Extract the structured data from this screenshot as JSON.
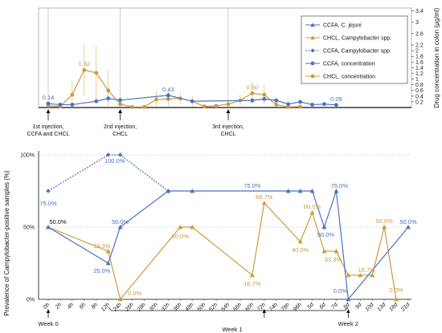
{
  "chart_data": {
    "type": "line",
    "colors": {
      "ccfa": "#4a72c4",
      "chcl": "#cc9a3a",
      "grid": "#bbbbbb"
    },
    "time_labels": [
      "0h",
      "2h",
      "4h",
      "6h",
      "8h",
      "12h",
      "24h",
      "26h",
      "28h",
      "30h",
      "32h",
      "36h",
      "48h",
      "50h",
      "52h",
      "54h",
      "56h",
      "60h",
      "72h",
      "74h",
      "78h",
      "96h",
      "5d",
      "6d",
      "7d",
      "8d",
      "9d",
      "10d",
      "13d",
      "18d",
      "21d"
    ],
    "weeks": [
      {
        "label": "Week 0",
        "time": "0h"
      },
      {
        "label": "Week 1",
        "time": "72h"
      },
      {
        "label": "Week 2",
        "time": "8d"
      }
    ],
    "injections": [
      {
        "time": "0h",
        "lines": [
          "1st injection,",
          "CCFA and CHCL"
        ]
      },
      {
        "time": "24h",
        "lines": [
          "2nd injection,",
          "CHCL"
        ]
      },
      {
        "time": "54h",
        "lines": [
          "3rd injection,",
          "CHCL"
        ]
      }
    ],
    "top_panel": {
      "ylabel": "Drug concentration in colon (μg/ml)",
      "ylim": [
        0,
        3.5
      ],
      "yticks": [
        "0.2",
        "0.4",
        "0.6",
        "0.8",
        "1",
        "1.2",
        "1.4",
        "1.6",
        "1.8",
        "2",
        "2.2",
        "2.6",
        "3",
        "3.4"
      ],
      "ccfa_concentration": {
        "name": "CCFA, concentration",
        "points": [
          [
            "0h",
            0.14
          ],
          [
            "2h",
            0.1
          ],
          [
            "4h",
            0.1
          ],
          [
            "8h",
            0.22
          ],
          [
            "12h",
            0.32
          ],
          [
            "24h",
            0.26
          ],
          [
            "32h",
            0.43
          ],
          [
            "48h",
            0.22
          ],
          [
            "60h",
            0.25
          ],
          [
            "72h",
            0.3
          ],
          [
            "74h",
            0.25
          ],
          [
            "78h",
            0.12
          ],
          [
            "96h",
            0.2
          ],
          [
            "5d",
            0.1
          ],
          [
            "6d",
            0.12
          ],
          [
            "7d",
            0.09
          ]
        ],
        "errors": [
          0.05,
          0.05,
          0.05,
          0.08,
          0.12,
          0.1,
          0.15,
          0.08,
          0.08,
          0.08,
          0.08,
          0.05,
          0.06,
          0.04,
          0.05,
          0.03
        ]
      },
      "chcl_concentration": {
        "name": "CHCL, concentration",
        "points": [
          [
            "0h",
            0.06
          ],
          [
            "2h",
            0.04
          ],
          [
            "4h",
            0.45
          ],
          [
            "6h",
            1.32
          ],
          [
            "8h",
            1.22
          ],
          [
            "12h",
            0.6
          ],
          [
            "24h",
            0.12
          ],
          [
            "26h",
            0.02
          ],
          [
            "28h",
            0.02
          ],
          [
            "30h",
            0.28
          ],
          [
            "32h",
            0.3
          ],
          [
            "36h",
            0.32
          ],
          [
            "48h",
            0.22
          ],
          [
            "50h",
            0.04
          ],
          [
            "52h",
            0.06
          ],
          [
            "54h",
            0.12
          ],
          [
            "56h",
            0.25
          ],
          [
            "60h",
            0.5
          ],
          [
            "72h",
            0.45
          ],
          [
            "74h",
            0.1
          ],
          [
            "78h",
            0.02
          ],
          [
            "96h",
            0.03
          ]
        ],
        "errors": [
          0.04,
          0.03,
          0.5,
          0.9,
          0.95,
          0.7,
          0.2,
          0.05,
          0.05,
          0.3,
          0.25,
          0.2,
          0.2,
          0.04,
          0.05,
          0.15,
          0.2,
          0.4,
          0.35,
          0.1,
          0.04,
          0.04
        ]
      },
      "data_labels": [
        {
          "series": "ccfa",
          "time": "0h",
          "value": 0.14,
          "text": "0.14"
        },
        {
          "series": "chcl",
          "time": "6h",
          "value": 1.32,
          "text": "1.32"
        },
        {
          "series": "ccfa",
          "time": "32h",
          "value": 0.43,
          "text": "0.43"
        },
        {
          "series": "chcl",
          "time": "60h",
          "value": 0.5,
          "text": "0.50"
        },
        {
          "series": "ccfa",
          "time": "7d",
          "value": 0.09,
          "text": "0.09"
        }
      ]
    },
    "bottom_panel": {
      "ylabel": "Prevalence of Campylobacter-positive samples (%)",
      "ylim": [
        0,
        100
      ],
      "yticks": [
        "0%",
        "50%",
        "100%"
      ],
      "ccfa_cjejuni": {
        "name": "CCFA, C. jejuni",
        "points": [
          [
            "0h",
            50
          ],
          [
            "12h",
            25
          ],
          [
            "24h",
            50
          ],
          [
            "32h",
            75
          ],
          [
            "48h",
            75
          ],
          [
            "78h",
            75
          ],
          [
            "96h",
            75
          ],
          [
            "5d",
            75
          ],
          [
            "6d",
            50
          ],
          [
            "7d",
            75
          ],
          [
            "8d",
            0
          ],
          [
            "21d",
            50
          ]
        ]
      },
      "chcl_campy": {
        "name": "CHCL, Campylobacter spp.",
        "points": [
          [
            "0h",
            50
          ],
          [
            "12h",
            33.3
          ],
          [
            "24h",
            0
          ],
          [
            "36h",
            50
          ],
          [
            "48h",
            50
          ],
          [
            "60h",
            16.7
          ],
          [
            "72h",
            66.7
          ],
          [
            "96h",
            40
          ],
          [
            "5d",
            60
          ],
          [
            "6d",
            33.3
          ],
          [
            "7d",
            33.3
          ],
          [
            "8d",
            16.7
          ],
          [
            "9d",
            16.7
          ],
          [
            "10d",
            16.7
          ],
          [
            "13d",
            50
          ],
          [
            "18d",
            0
          ]
        ]
      },
      "ccfa_campy": {
        "name": "CCFA, Campylobacter spp.",
        "points": [
          [
            "0h",
            75
          ],
          [
            "12h",
            100
          ],
          [
            "24h",
            100
          ],
          [
            "32h",
            75
          ]
        ]
      },
      "data_labels": [
        {
          "series": "ccfa_campy",
          "time": "0h",
          "value": 75,
          "text": "75.0%"
        },
        {
          "series": "ccfa_campy",
          "time": "12h",
          "value": 100,
          "text": "100.0%"
        },
        {
          "series": "dark",
          "time": "0h",
          "value": 50,
          "text": "50.0%"
        },
        {
          "series": "chcl",
          "time": "12h",
          "value": 33.3,
          "text": "33.3%"
        },
        {
          "series": "ccfa",
          "time": "12h",
          "value": 25,
          "text": "25.0%"
        },
        {
          "series": "ccfa",
          "time": "24h",
          "value": 50,
          "text": "50.0%"
        },
        {
          "series": "chcl",
          "time": "24h",
          "value": 0,
          "text": "0.0%"
        },
        {
          "series": "chcl",
          "time": "36h",
          "value": 50,
          "text": "50.0%"
        },
        {
          "series": "ccfa",
          "time": "60h",
          "value": 75,
          "text": "75.0%"
        },
        {
          "series": "chcl",
          "time": "60h",
          "value": 16.7,
          "text": "16.7%"
        },
        {
          "series": "chcl",
          "time": "72h",
          "value": 66.7,
          "text": "66.7%"
        },
        {
          "series": "chcl",
          "time": "96h",
          "value": 40,
          "text": "40.0%"
        },
        {
          "series": "chcl",
          "time": "5d",
          "value": 60,
          "text": "60.0%"
        },
        {
          "series": "ccfa",
          "time": "6d",
          "value": 50,
          "text": "50.0%"
        },
        {
          "series": "ccfa",
          "time": "7d",
          "value": 75,
          "text": "75.0%"
        },
        {
          "series": "chcl",
          "time": "7d",
          "value": 33.3,
          "text": "33.3%"
        },
        {
          "series": "ccfa",
          "time": "8d",
          "value": 0,
          "text": "0.0%"
        },
        {
          "series": "chcl",
          "time": "9d",
          "value": 16.7,
          "text": "16.7%"
        },
        {
          "series": "chcl",
          "time": "13d",
          "value": 50,
          "text": "50.0%"
        },
        {
          "series": "chcl",
          "time": "18d",
          "value": 0,
          "text": "0.0%"
        },
        {
          "series": "ccfa",
          "time": "21d",
          "value": 50,
          "text": "50.0%"
        }
      ]
    },
    "legend": [
      {
        "key": "ccfa_cjejuni",
        "label": "CCFA, C. jejuni",
        "marker": "triangle",
        "color": "ccfa",
        "dash": false
      },
      {
        "key": "chcl_campy",
        "label": "CHCL, Campylobacter spp.",
        "marker": "triangle",
        "color": "chcl",
        "dash": false
      },
      {
        "key": "ccfa_campy",
        "label": "CCFA, Campylobacter spp.",
        "marker": "diamond",
        "color": "ccfa",
        "dash": true
      },
      {
        "key": "ccfa_conc",
        "label": "CCFA, concentration",
        "marker": "circle",
        "color": "ccfa",
        "dash": false
      },
      {
        "key": "chcl_conc",
        "label": "CHCL, concentration",
        "marker": "circle",
        "color": "chcl",
        "dash": false
      }
    ]
  }
}
